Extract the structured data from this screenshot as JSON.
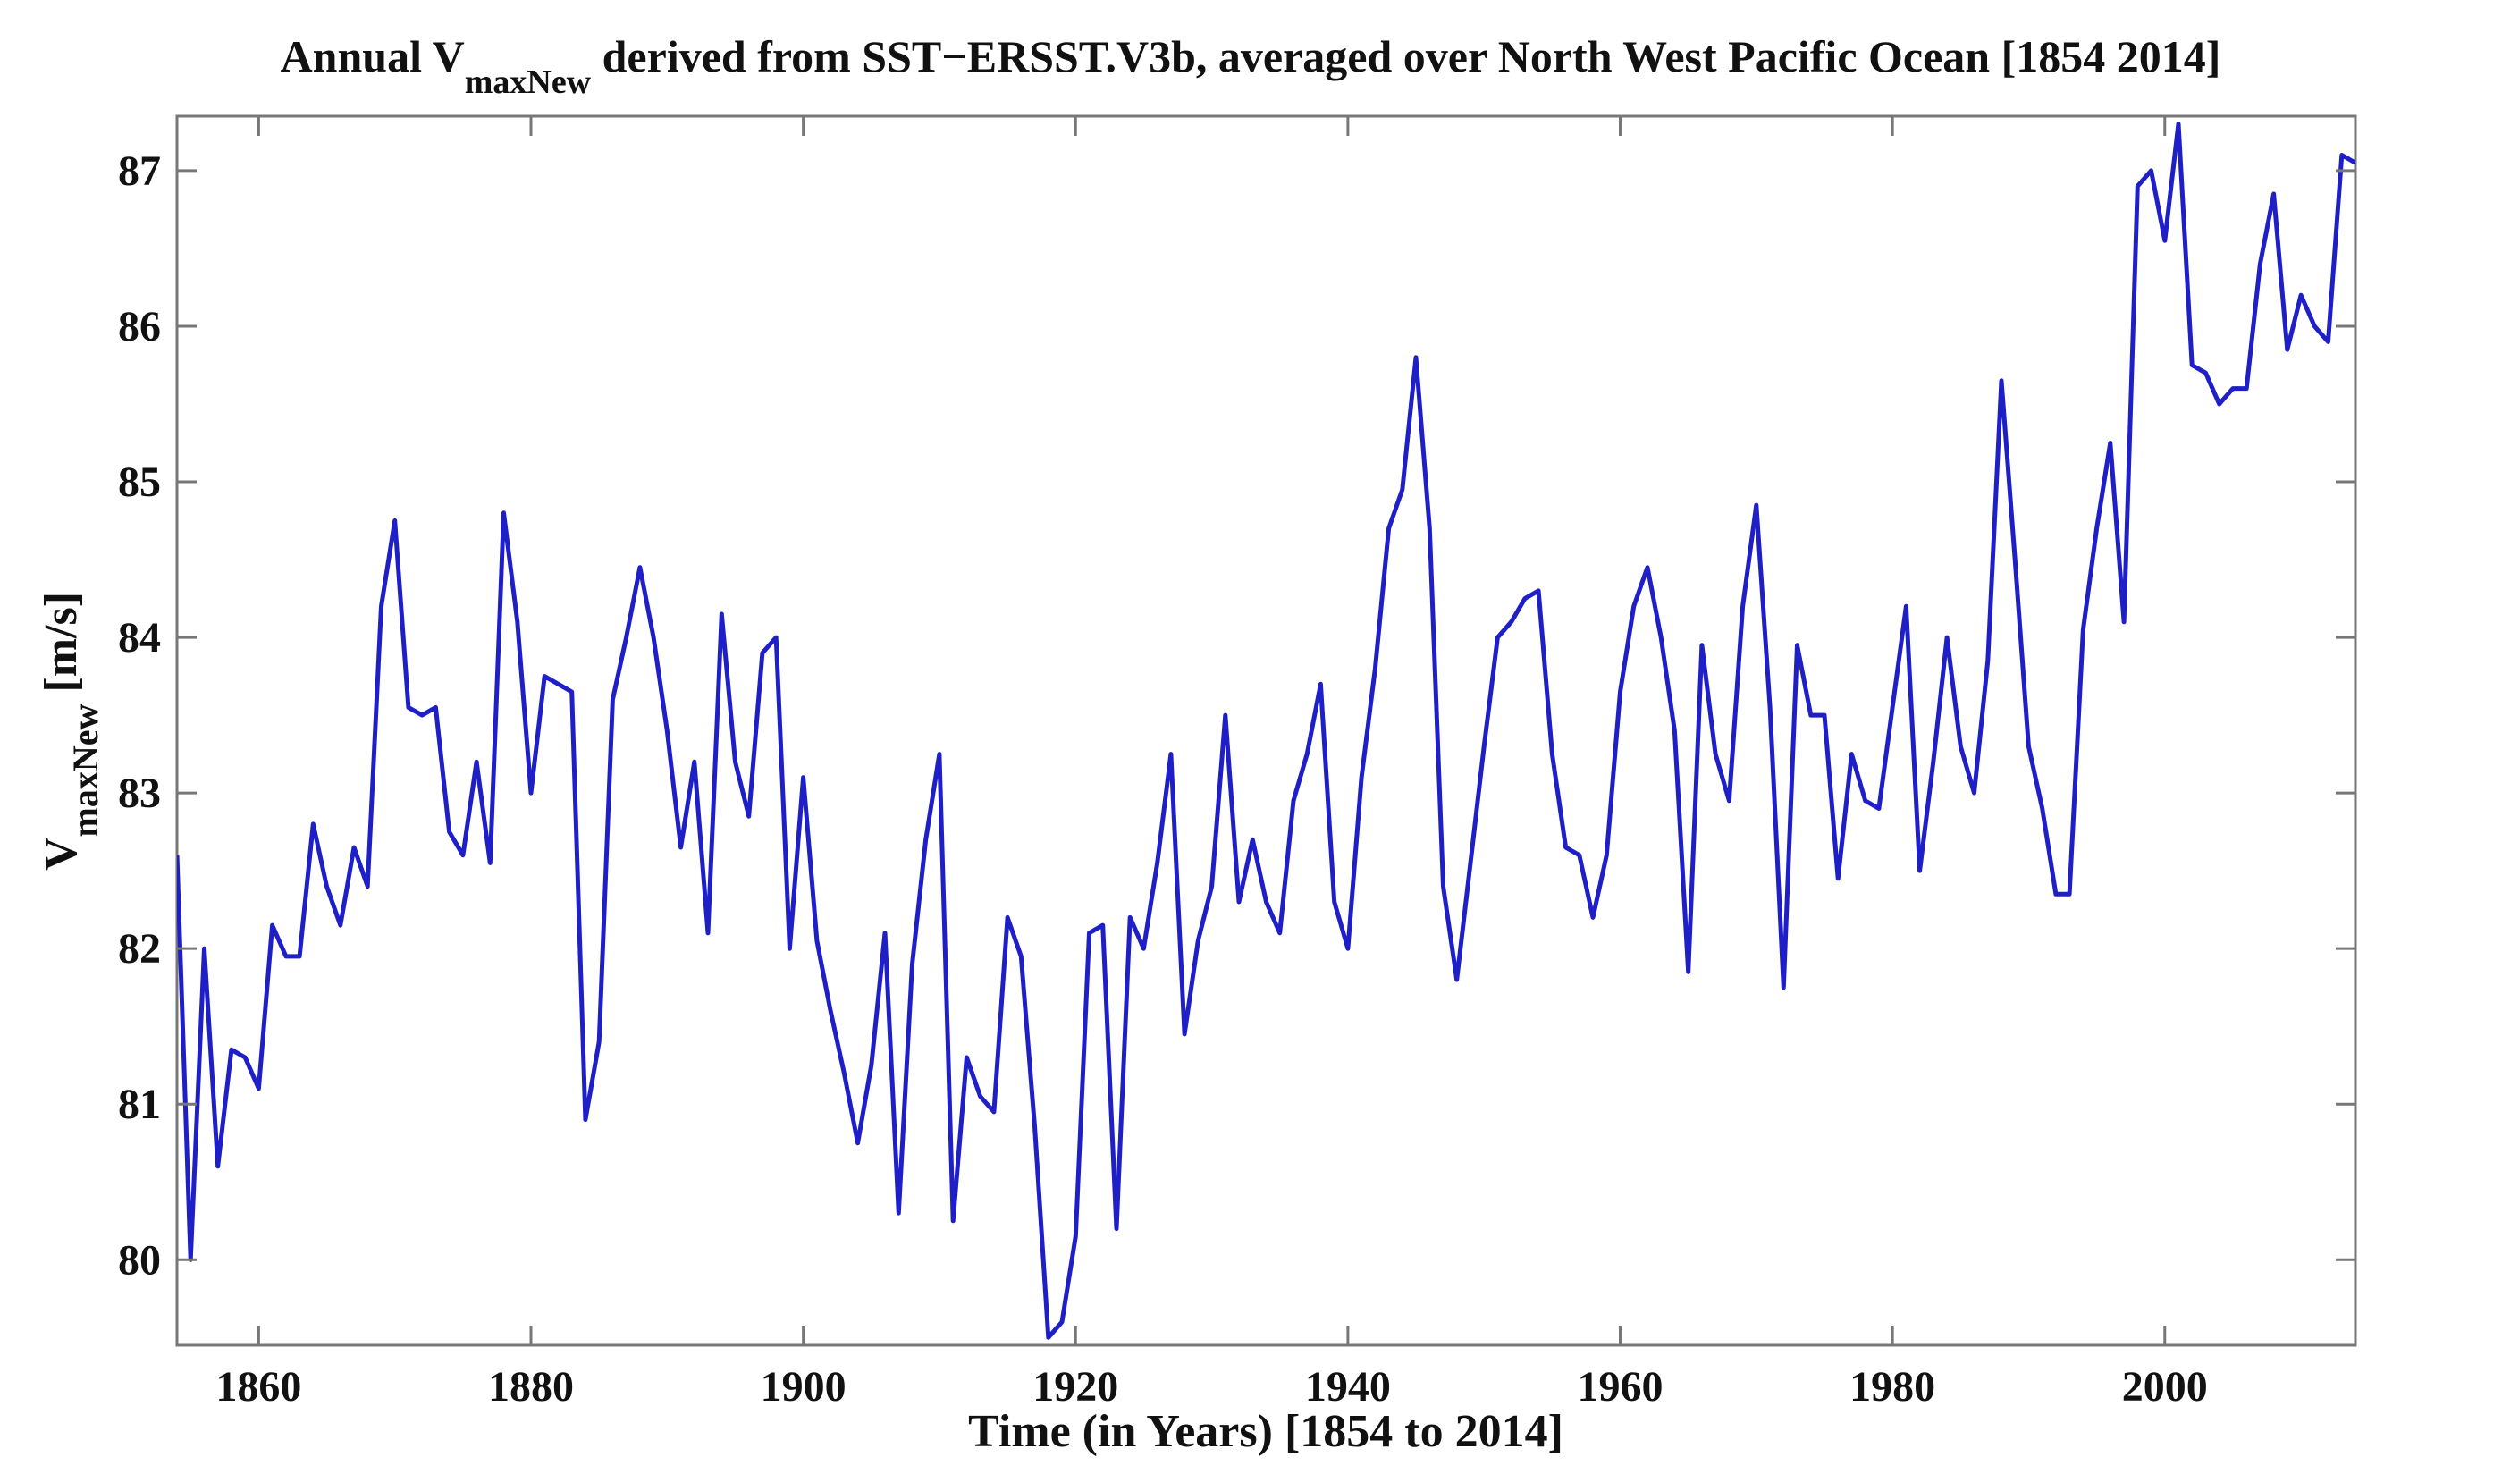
{
  "chart_data": {
    "type": "line",
    "title_main": "Annual V",
    "title_sub": "maxNew",
    "title_rest": " derived from SST−ERSST.V3b, averaged over North West Pacific Ocean [1854 2014]",
    "xlabel": "Time (in Years) [1854 to 2014]",
    "ylabel_main": "V",
    "ylabel_sub": "maxNew",
    "ylabel_rest": " [m/s]",
    "xlim": [
      1854,
      2014
    ],
    "ylim": [
      79.45,
      87.35
    ],
    "xticks": [
      1860,
      1880,
      1900,
      1920,
      1940,
      1960,
      1980,
      2000
    ],
    "yticks": [
      80,
      81,
      82,
      83,
      84,
      85,
      86,
      87
    ],
    "grid": false,
    "line_color": "#1f1fc8",
    "series": [
      {
        "x": [
          1854,
          1855,
          1856,
          1857,
          1858,
          1859,
          1860,
          1861,
          1862,
          1863,
          1864,
          1865,
          1866,
          1867,
          1868,
          1869,
          1870,
          1871,
          1872,
          1873,
          1874,
          1875,
          1876,
          1877,
          1878,
          1879,
          1880,
          1881,
          1882,
          1883,
          1884,
          1885,
          1886,
          1887,
          1888,
          1889,
          1890,
          1891,
          1892,
          1893,
          1894,
          1895,
          1896,
          1897,
          1898,
          1899,
          1900,
          1901,
          1902,
          1903,
          1904,
          1905,
          1906,
          1907,
          1908,
          1909,
          1910,
          1911,
          1912,
          1913,
          1914,
          1915,
          1916,
          1917,
          1918,
          1919,
          1920,
          1921,
          1922,
          1923,
          1924,
          1925,
          1926,
          1927,
          1928,
          1929,
          1930,
          1931,
          1932,
          1933,
          1934,
          1935,
          1936,
          1937,
          1938,
          1939,
          1940,
          1941,
          1942,
          1943,
          1944,
          1945,
          1946,
          1947,
          1948,
          1949,
          1950,
          1951,
          1952,
          1953,
          1954,
          1955,
          1956,
          1957,
          1958,
          1959,
          1960,
          1961,
          1962,
          1963,
          1964,
          1965,
          1966,
          1967,
          1968,
          1969,
          1970,
          1971,
          1972,
          1973,
          1974,
          1975,
          1976,
          1977,
          1978,
          1979,
          1980,
          1981,
          1982,
          1983,
          1984,
          1985,
          1986,
          1987,
          1988,
          1989,
          1990,
          1991,
          1992,
          1993,
          1994,
          1995,
          1996,
          1997,
          1998,
          1999,
          2000,
          2001,
          2002,
          2003,
          2004,
          2005,
          2006,
          2007,
          2008,
          2009,
          2010,
          2011,
          2012,
          2013,
          2014
        ],
        "values": [
          82.6,
          80.0,
          82.0,
          80.6,
          81.35,
          81.3,
          81.1,
          82.15,
          81.95,
          81.95,
          82.8,
          82.4,
          82.15,
          82.65,
          82.4,
          84.2,
          84.75,
          83.55,
          83.5,
          83.55,
          82.75,
          82.6,
          83.2,
          82.55,
          84.8,
          84.1,
          83.0,
          83.75,
          83.7,
          83.65,
          80.9,
          81.4,
          83.6,
          84.0,
          84.45,
          84.0,
          83.4,
          82.65,
          83.2,
          82.1,
          84.15,
          83.2,
          82.85,
          83.9,
          84.0,
          82.0,
          83.1,
          82.05,
          81.6,
          81.2,
          80.75,
          81.25,
          82.1,
          80.3,
          81.9,
          82.7,
          83.25,
          80.25,
          81.3,
          81.05,
          80.95,
          82.2,
          81.95,
          80.85,
          79.5,
          79.6,
          80.15,
          82.1,
          82.15,
          80.2,
          82.2,
          82.0,
          82.55,
          83.25,
          81.45,
          82.05,
          82.4,
          83.5,
          82.3,
          82.7,
          82.3,
          82.1,
          82.95,
          83.25,
          83.7,
          82.3,
          82.0,
          83.1,
          83.8,
          84.7,
          84.95,
          85.8,
          84.7,
          82.4,
          81.8,
          82.55,
          83.3,
          84.0,
          84.1,
          84.25,
          84.3,
          83.25,
          82.65,
          82.6,
          82.2,
          82.6,
          83.65,
          84.2,
          84.45,
          84.0,
          83.4,
          81.85,
          83.95,
          83.25,
          82.95,
          84.2,
          84.85,
          83.55,
          81.75,
          83.95,
          83.5,
          83.5,
          82.45,
          83.25,
          82.95,
          82.9,
          83.55,
          84.2,
          82.5,
          83.2,
          84.0,
          83.3,
          83.0,
          83.85,
          85.65,
          84.5,
          83.3,
          82.9,
          82.35,
          82.35,
          84.05,
          84.7,
          85.25,
          84.1,
          86.9,
          87.0,
          86.55,
          87.3,
          85.75,
          85.7,
          85.5,
          85.6,
          85.6,
          86.4,
          86.85,
          85.85,
          86.2,
          86.0,
          85.9,
          87.1,
          87.05
        ]
      }
    ]
  }
}
